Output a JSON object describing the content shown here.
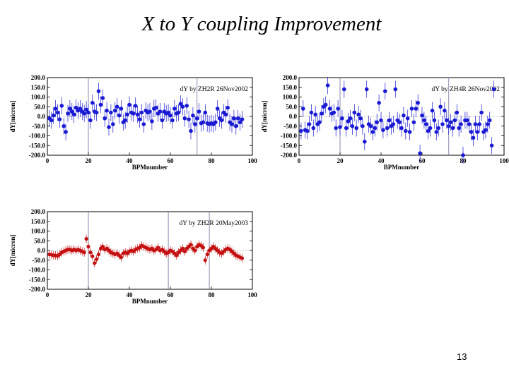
{
  "slide": {
    "title": "X to Y coupling Improvement",
    "page_number": "13"
  },
  "colors": {
    "blue": "#1a1ad4",
    "red": "#c41010",
    "frame": "#000000",
    "vline": "#8a8ab0"
  },
  "chart_data": [
    {
      "type": "scatter",
      "title": "dY by ZH2R 26Nov2002",
      "xlabel": "BPMnumber",
      "ylabel": "dY[micron]",
      "xlim": [
        0,
        100
      ],
      "ylim": [
        -200,
        200
      ],
      "x_ticks": [
        "0",
        "20",
        "40",
        "60",
        "80",
        "100"
      ],
      "y_ticks": [
        "200.0",
        "150.0",
        "100.0",
        "50.0",
        "0.0",
        "-50.0",
        "-100.0",
        "-150.0",
        "-200.0"
      ],
      "color": "blue",
      "vlines": [
        20,
        73
      ],
      "x": [
        1,
        2,
        3,
        4,
        5,
        6,
        7,
        8,
        9,
        10,
        11,
        12,
        13,
        14,
        15,
        16,
        17,
        18,
        19,
        20,
        21,
        22,
        23,
        24,
        25,
        26,
        27,
        28,
        29,
        30,
        31,
        32,
        33,
        34,
        35,
        36,
        37,
        38,
        39,
        40,
        41,
        42,
        43,
        44,
        45,
        46,
        47,
        48,
        49,
        50,
        51,
        52,
        53,
        54,
        55,
        56,
        57,
        58,
        59,
        60,
        61,
        62,
        63,
        64,
        65,
        66,
        67,
        68,
        69,
        70,
        71,
        72,
        73,
        74,
        75,
        76,
        77,
        78,
        79,
        80,
        81,
        82,
        83,
        84,
        85,
        86,
        87,
        88,
        89,
        90,
        91,
        92,
        93,
        94,
        95
      ],
      "y": [
        -10,
        -20,
        5,
        40,
        20,
        -15,
        55,
        -50,
        -80,
        15,
        40,
        25,
        10,
        45,
        30,
        40,
        25,
        15,
        35,
        20,
        -20,
        70,
        25,
        20,
        130,
        60,
        95,
        -10,
        30,
        -55,
        20,
        -40,
        30,
        50,
        5,
        40,
        -30,
        -20,
        10,
        60,
        20,
        15,
        55,
        10,
        -15,
        20,
        -40,
        30,
        20,
        25,
        -25,
        40,
        45,
        15,
        25,
        -20,
        25,
        15,
        20,
        5,
        -20,
        40,
        15,
        20,
        65,
        50,
        -10,
        55,
        -15,
        -75,
        5,
        -40,
        -10,
        25,
        -35,
        -30,
        20,
        -35,
        -40,
        -35,
        -40,
        -30,
        40,
        -10,
        -20,
        20,
        10,
        45,
        -30,
        -40,
        -10,
        -50,
        -10,
        -30,
        -15
      ]
    },
    {
      "type": "scatter",
      "title": "dY by ZH4R 26Nov2002",
      "xlabel": "BPMnumber",
      "ylabel": "dY[micron]",
      "xlim": [
        0,
        100
      ],
      "ylim": [
        -200,
        200
      ],
      "x_ticks": [
        "0",
        "20",
        "40",
        "60",
        "80",
        "100"
      ],
      "y_ticks": [
        "200.0",
        "150.0",
        "100.0",
        "50.0",
        "0.0",
        "-50.0",
        "-100.0",
        "-150.0",
        "-200.0"
      ],
      "color": "blue",
      "vlines": [
        20,
        73
      ],
      "x": [
        1,
        2,
        3,
        4,
        5,
        6,
        7,
        8,
        9,
        10,
        11,
        12,
        13,
        14,
        15,
        16,
        17,
        18,
        19,
        20,
        21,
        22,
        23,
        24,
        25,
        26,
        27,
        28,
        29,
        30,
        31,
        32,
        33,
        34,
        35,
        36,
        37,
        38,
        39,
        40,
        41,
        42,
        43,
        44,
        45,
        46,
        47,
        48,
        49,
        50,
        51,
        52,
        53,
        54,
        55,
        56,
        57,
        58,
        59,
        60,
        61,
        62,
        63,
        64,
        65,
        66,
        67,
        68,
        69,
        70,
        71,
        72,
        73,
        74,
        75,
        76,
        77,
        78,
        79,
        80,
        81,
        82,
        83,
        84,
        85,
        86,
        87,
        88,
        89,
        90,
        91,
        92,
        93,
        94,
        95
      ],
      "y": [
        -75,
        40,
        -70,
        -75,
        -40,
        20,
        -60,
        10,
        -40,
        -30,
        15,
        50,
        60,
        160,
        40,
        15,
        20,
        -60,
        40,
        -55,
        -10,
        140,
        -60,
        -25,
        -10,
        -50,
        20,
        -60,
        10,
        -10,
        -50,
        -130,
        140,
        -40,
        -50,
        -80,
        -60,
        -30,
        70,
        -20,
        -70,
        130,
        -60,
        -20,
        -50,
        -40,
        140,
        -20,
        -30,
        -60,
        5,
        -75,
        -10,
        -80,
        40,
        -30,
        40,
        70,
        -190,
        5,
        -20,
        -40,
        -75,
        -60,
        30,
        -20,
        -80,
        -60,
        50,
        -40,
        30,
        -20,
        -50,
        -30,
        -60,
        -20,
        20,
        -60,
        -40,
        -200,
        -20,
        -20,
        -40,
        -80,
        -110,
        -40,
        -80,
        -40,
        20,
        -80,
        -70,
        -40,
        -20,
        -150,
        140
      ]
    },
    {
      "type": "scatter",
      "title": "dY by ZH2R 20May2003",
      "xlabel": "BPMnumber",
      "ylabel": "dY[micron]",
      "xlim": [
        0,
        100
      ],
      "ylim": [
        -200,
        200
      ],
      "x_ticks": [
        "0",
        "20",
        "40",
        "60",
        "80",
        "100"
      ],
      "y_ticks": [
        "200.0",
        "150.0",
        "100.0",
        "50.0",
        "0.0",
        "-50.0",
        "-100.0",
        "-150.0",
        "-200.0"
      ],
      "color": "red",
      "vlines": [
        20,
        59,
        79
      ],
      "x": [
        1,
        2,
        3,
        4,
        5,
        6,
        7,
        8,
        9,
        10,
        11,
        12,
        13,
        14,
        15,
        16,
        17,
        18,
        19,
        20,
        21,
        22,
        23,
        24,
        25,
        26,
        27,
        28,
        29,
        30,
        31,
        32,
        33,
        34,
        35,
        36,
        37,
        38,
        39,
        40,
        41,
        42,
        43,
        44,
        45,
        46,
        47,
        48,
        49,
        50,
        51,
        52,
        53,
        54,
        55,
        56,
        57,
        58,
        59,
        60,
        61,
        62,
        63,
        64,
        65,
        66,
        67,
        68,
        69,
        70,
        71,
        72,
        73,
        74,
        75,
        76,
        77,
        78,
        79,
        80,
        81,
        82,
        83,
        84,
        85,
        86,
        87,
        88,
        89,
        90,
        91,
        92,
        93,
        94,
        95
      ],
      "y": [
        -20,
        -22,
        -25,
        -26,
        -28,
        -20,
        -10,
        -5,
        0,
        5,
        5,
        0,
        5,
        0,
        5,
        0,
        -5,
        -10,
        60,
        20,
        -10,
        -30,
        -65,
        -45,
        -20,
        10,
        20,
        5,
        10,
        0,
        -10,
        -15,
        -20,
        -15,
        -25,
        -35,
        -15,
        -10,
        -15,
        -5,
        0,
        -5,
        5,
        10,
        15,
        25,
        20,
        15,
        10,
        5,
        10,
        0,
        5,
        15,
        0,
        5,
        -5,
        -15,
        -10,
        0,
        -5,
        -15,
        -25,
        -10,
        0,
        10,
        -5,
        10,
        20,
        30,
        10,
        0,
        20,
        30,
        25,
        15,
        -50,
        -20,
        0,
        10,
        20,
        10,
        0,
        -10,
        -15,
        -5,
        5,
        10,
        5,
        -5,
        -15,
        -25,
        -30,
        -35,
        -40
      ]
    }
  ]
}
